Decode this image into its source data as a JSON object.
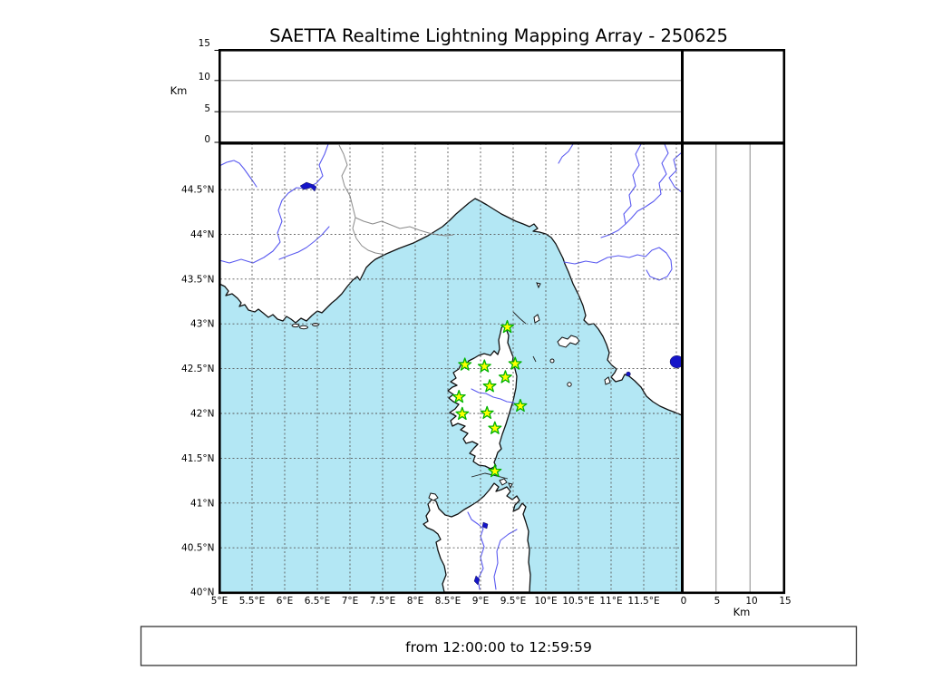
{
  "title": "SAETTA Realtime Lightning Mapping Array - 250625",
  "footer": {
    "text": "from 12:00:00 to 12:59:59"
  },
  "altitude_panel": {
    "axis_label": "Km",
    "ticks": [
      "15",
      "10",
      "5",
      "0"
    ],
    "range_km": [
      0,
      15
    ],
    "gridlines_km": [
      5,
      10
    ]
  },
  "right_panel": {
    "axis_label": "Km",
    "ticks": [
      "0",
      "5",
      "10",
      "15"
    ],
    "range_km": [
      0,
      15
    ],
    "gridlines_km": [
      5,
      10
    ]
  },
  "map": {
    "lon_ticks": [
      "5°E",
      "5.5°E",
      "6°E",
      "6.5°E",
      "7°E",
      "7.5°E",
      "8°E",
      "8.5°E",
      "9°E",
      "9.5°E",
      "10°E",
      "10.5°E",
      "11°E",
      "11.5°E"
    ],
    "lat_ticks": [
      "44.5°N",
      "44°N",
      "43.5°N",
      "43°N",
      "42.5°N",
      "42°N",
      "41.5°N",
      "41°N",
      "40.5°N",
      "40°N"
    ],
    "lon_range_deg": [
      5,
      12.08
    ],
    "lat_range_deg": [
      40,
      45
    ],
    "stations": [
      {
        "lon": 9.41,
        "lat": 42.96
      },
      {
        "lon": 8.76,
        "lat": 42.54
      },
      {
        "lon": 9.06,
        "lat": 42.52
      },
      {
        "lon": 9.53,
        "lat": 42.55
      },
      {
        "lon": 9.38,
        "lat": 42.4
      },
      {
        "lon": 9.14,
        "lat": 42.3
      },
      {
        "lon": 8.67,
        "lat": 42.18
      },
      {
        "lon": 9.61,
        "lat": 42.08
      },
      {
        "lon": 8.72,
        "lat": 41.99
      },
      {
        "lon": 9.1,
        "lat": 42.0
      },
      {
        "lon": 9.22,
        "lat": 41.83
      },
      {
        "lon": 9.22,
        "lat": 41.35
      }
    ],
    "colors": {
      "sea": "#b3e7f4",
      "land": "#ffffff",
      "coast": "#111111",
      "river": "#5a5af0",
      "border": "#8a8a8a",
      "lake": "#1515c8",
      "grid": "#5a5a5a",
      "station_fill": "#ffff00",
      "station_edge": "#00b300"
    }
  }
}
